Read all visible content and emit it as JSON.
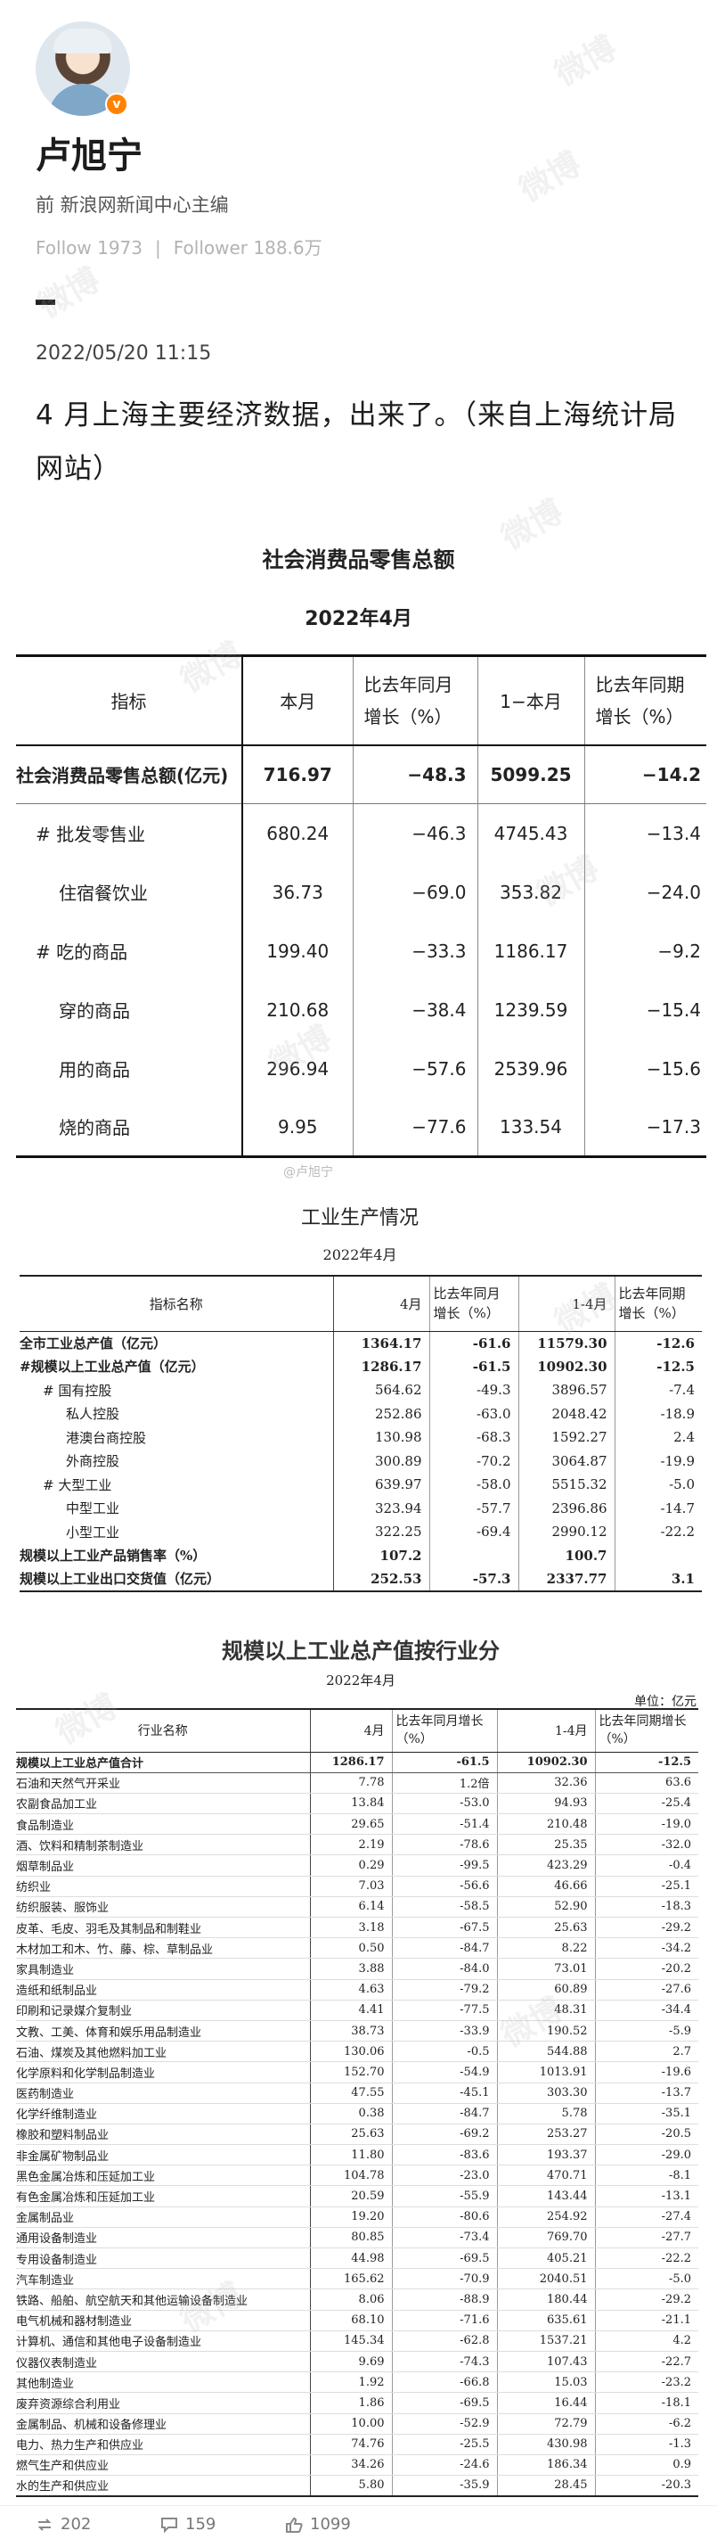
{
  "post": {
    "username": "卢旭宁",
    "verified_badge": "v",
    "bio": "前 新浪网新闻中心主编",
    "follow": "Follow 1973",
    "follower": "Follower 188.6万",
    "date": "2022/05/20 11:15",
    "text": "4 月上海主要经济数据，出来了。（来自上海统计局网站）",
    "accent_color": "#ff8200"
  },
  "retail": {
    "title": "社会消费品零售总额",
    "subtitle": "2022年4月",
    "headers": [
      "指标",
      "本月",
      "比去年同月增长（%）",
      "1−本月",
      "比去年同期增长（%）"
    ],
    "rows": [
      {
        "label": "社会消费品零售总额(亿元)",
        "v1": "716.97",
        "v2": "−48.3",
        "v3": "5099.25",
        "v4": "−14.2"
      },
      {
        "label": "# 批发零售业",
        "v1": "680.24",
        "v2": "−46.3",
        "v3": "4745.43",
        "v4": "−13.4"
      },
      {
        "label": "住宿餐饮业",
        "v1": "36.73",
        "v2": "−69.0",
        "v3": "353.82",
        "v4": "−24.0"
      },
      {
        "label": "# 吃的商品",
        "v1": "199.40",
        "v2": "−33.3",
        "v3": "1186.17",
        "v4": "−9.2"
      },
      {
        "label": "穿的商品",
        "v1": "210.68",
        "v2": "−38.4",
        "v3": "1239.59",
        "v4": "−15.4"
      },
      {
        "label": "用的商品",
        "v1": "296.94",
        "v2": "−57.6",
        "v3": "2539.96",
        "v4": "−15.6"
      },
      {
        "label": "烧的商品",
        "v1": "9.95",
        "v2": "−77.6",
        "v3": "133.54",
        "v4": "−17.3"
      }
    ]
  },
  "industry": {
    "title": "工业生产情况",
    "subtitle": "2022年4月",
    "headers": [
      "指标名称",
      "4月",
      "比去年同月增长（%）",
      "1-4月",
      "比去年同期增长（%）"
    ],
    "rows": [
      {
        "label": "全市工业总产值（亿元）",
        "v1": "1364.17",
        "v2": "-61.6",
        "v3": "11579.30",
        "v4": "-12.6"
      },
      {
        "label": "#规模以上工业总产值（亿元）",
        "v1": "1286.17",
        "v2": "-61.5",
        "v3": "10902.30",
        "v4": "-12.5"
      },
      {
        "label": "# 国有控股",
        "v1": "564.62",
        "v2": "-49.3",
        "v3": "3896.57",
        "v4": "-7.4"
      },
      {
        "label": "私人控股",
        "v1": "252.86",
        "v2": "-63.0",
        "v3": "2048.42",
        "v4": "-18.9"
      },
      {
        "label": "港澳台商控股",
        "v1": "130.98",
        "v2": "-68.3",
        "v3": "1592.27",
        "v4": "2.4"
      },
      {
        "label": "外商控股",
        "v1": "300.89",
        "v2": "-70.2",
        "v3": "3064.87",
        "v4": "-19.9"
      },
      {
        "label": "# 大型工业",
        "v1": "639.97",
        "v2": "-58.0",
        "v3": "5515.32",
        "v4": "-5.0"
      },
      {
        "label": "中型工业",
        "v1": "323.94",
        "v2": "-57.7",
        "v3": "2396.86",
        "v4": "-14.7"
      },
      {
        "label": "小型工业",
        "v1": "322.25",
        "v2": "-69.4",
        "v3": "2990.12",
        "v4": "-22.2"
      },
      {
        "label": "规模以上工业产品销售率（%）",
        "v1": "107.2",
        "v2": "",
        "v3": "100.7",
        "v4": ""
      },
      {
        "label": "规模以上工业出口交货值（亿元）",
        "v1": "252.53",
        "v2": "-57.3",
        "v3": "2337.77",
        "v4": "3.1"
      }
    ]
  },
  "sector": {
    "title": "规模以上工业总产值按行业分",
    "subtitle": "2022年4月",
    "unit": "单位：亿元",
    "headers": [
      "行业名称",
      "4月",
      "比去年同月增长（%）",
      "1-4月",
      "比去年同期增长（%）"
    ],
    "rows": [
      {
        "label": "规模以上工业总产值合计",
        "v1": "1286.17",
        "v2": "-61.5",
        "v3": "10902.30",
        "v4": "-12.5"
      },
      {
        "label": "石油和天然气开采业",
        "v1": "7.78",
        "v2": "1.2倍",
        "v3": "32.36",
        "v4": "63.6"
      },
      {
        "label": "农副食品加工业",
        "v1": "13.84",
        "v2": "-53.0",
        "v3": "94.93",
        "v4": "-25.4"
      },
      {
        "label": "食品制造业",
        "v1": "29.65",
        "v2": "-51.4",
        "v3": "210.48",
        "v4": "-19.0"
      },
      {
        "label": "酒、饮料和精制茶制造业",
        "v1": "2.19",
        "v2": "-78.6",
        "v3": "25.35",
        "v4": "-32.0"
      },
      {
        "label": "烟草制品业",
        "v1": "0.29",
        "v2": "-99.5",
        "v3": "423.29",
        "v4": "-0.4"
      },
      {
        "label": "纺织业",
        "v1": "7.03",
        "v2": "-56.6",
        "v3": "46.66",
        "v4": "-25.1"
      },
      {
        "label": "纺织服装、服饰业",
        "v1": "6.14",
        "v2": "-58.5",
        "v3": "52.90",
        "v4": "-18.3"
      },
      {
        "label": "皮革、毛皮、羽毛及其制品和制鞋业",
        "v1": "3.18",
        "v2": "-67.5",
        "v3": "25.63",
        "v4": "-29.2"
      },
      {
        "label": "木材加工和木、竹、藤、棕、草制品业",
        "v1": "0.50",
        "v2": "-84.7",
        "v3": "8.22",
        "v4": "-34.2"
      },
      {
        "label": "家具制造业",
        "v1": "3.88",
        "v2": "-84.0",
        "v3": "73.01",
        "v4": "-20.2"
      },
      {
        "label": "造纸和纸制品业",
        "v1": "4.63",
        "v2": "-79.2",
        "v3": "60.89",
        "v4": "-27.6"
      },
      {
        "label": "印刷和记录媒介复制业",
        "v1": "4.41",
        "v2": "-77.5",
        "v3": "48.31",
        "v4": "-34.4"
      },
      {
        "label": "文教、工美、体育和娱乐用品制造业",
        "v1": "38.73",
        "v2": "-33.9",
        "v3": "190.52",
        "v4": "-5.9"
      },
      {
        "label": "石油、煤炭及其他燃料加工业",
        "v1": "130.06",
        "v2": "-0.5",
        "v3": "544.88",
        "v4": "2.7"
      },
      {
        "label": "化学原料和化学制品制造业",
        "v1": "152.70",
        "v2": "-54.9",
        "v3": "1013.91",
        "v4": "-19.6"
      },
      {
        "label": "医药制造业",
        "v1": "47.55",
        "v2": "-45.1",
        "v3": "303.30",
        "v4": "-13.7"
      },
      {
        "label": "化学纤维制造业",
        "v1": "0.38",
        "v2": "-84.7",
        "v3": "5.78",
        "v4": "-35.1"
      },
      {
        "label": "橡胶和塑料制品业",
        "v1": "25.63",
        "v2": "-69.2",
        "v3": "253.27",
        "v4": "-20.5"
      },
      {
        "label": "非金属矿物制品业",
        "v1": "11.80",
        "v2": "-83.6",
        "v3": "193.37",
        "v4": "-29.0"
      },
      {
        "label": "黑色金属冶炼和压延加工业",
        "v1": "104.78",
        "v2": "-23.0",
        "v3": "470.71",
        "v4": "-8.1"
      },
      {
        "label": "有色金属冶炼和压延加工业",
        "v1": "20.59",
        "v2": "-55.9",
        "v3": "143.44",
        "v4": "-13.1"
      },
      {
        "label": "金属制品业",
        "v1": "19.20",
        "v2": "-80.6",
        "v3": "254.92",
        "v4": "-27.4"
      },
      {
        "label": "通用设备制造业",
        "v1": "80.85",
        "v2": "-73.4",
        "v3": "769.70",
        "v4": "-27.7"
      },
      {
        "label": "专用设备制造业",
        "v1": "44.98",
        "v2": "-69.5",
        "v3": "405.21",
        "v4": "-22.2"
      },
      {
        "label": "汽车制造业",
        "v1": "165.62",
        "v2": "-70.9",
        "v3": "2040.51",
        "v4": "-5.0"
      },
      {
        "label": "铁路、船舶、航空航天和其他运输设备制造业",
        "v1": "8.06",
        "v2": "-88.9",
        "v3": "180.44",
        "v4": "-29.2"
      },
      {
        "label": "电气机械和器材制造业",
        "v1": "68.10",
        "v2": "-71.6",
        "v3": "635.61",
        "v4": "-21.1"
      },
      {
        "label": "计算机、通信和其他电子设备制造业",
        "v1": "145.34",
        "v2": "-62.8",
        "v3": "1537.21",
        "v4": "4.2"
      },
      {
        "label": "仪器仪表制造业",
        "v1": "9.69",
        "v2": "-74.3",
        "v3": "107.43",
        "v4": "-22.7"
      },
      {
        "label": "其他制造业",
        "v1": "1.92",
        "v2": "-66.8",
        "v3": "15.03",
        "v4": "-23.2"
      },
      {
        "label": "废弃资源综合利用业",
        "v1": "1.86",
        "v2": "-69.5",
        "v3": "16.44",
        "v4": "-18.1"
      },
      {
        "label": "金属制品、机械和设备修理业",
        "v1": "10.00",
        "v2": "-52.9",
        "v3": "72.79",
        "v4": "-6.2"
      },
      {
        "label": "电力、热力生产和供应业",
        "v1": "74.76",
        "v2": "-25.5",
        "v3": "430.98",
        "v4": "-1.3"
      },
      {
        "label": "燃气生产和供应业",
        "v1": "34.26",
        "v2": "-24.6",
        "v3": "186.34",
        "v4": "0.9"
      },
      {
        "label": "水的生产和供应业",
        "v1": "5.80",
        "v2": "-35.9",
        "v3": "28.45",
        "v4": "-20.3"
      }
    ]
  },
  "actions": {
    "repost": "202",
    "comment": "159",
    "like": "1099"
  },
  "watermark": "微博"
}
